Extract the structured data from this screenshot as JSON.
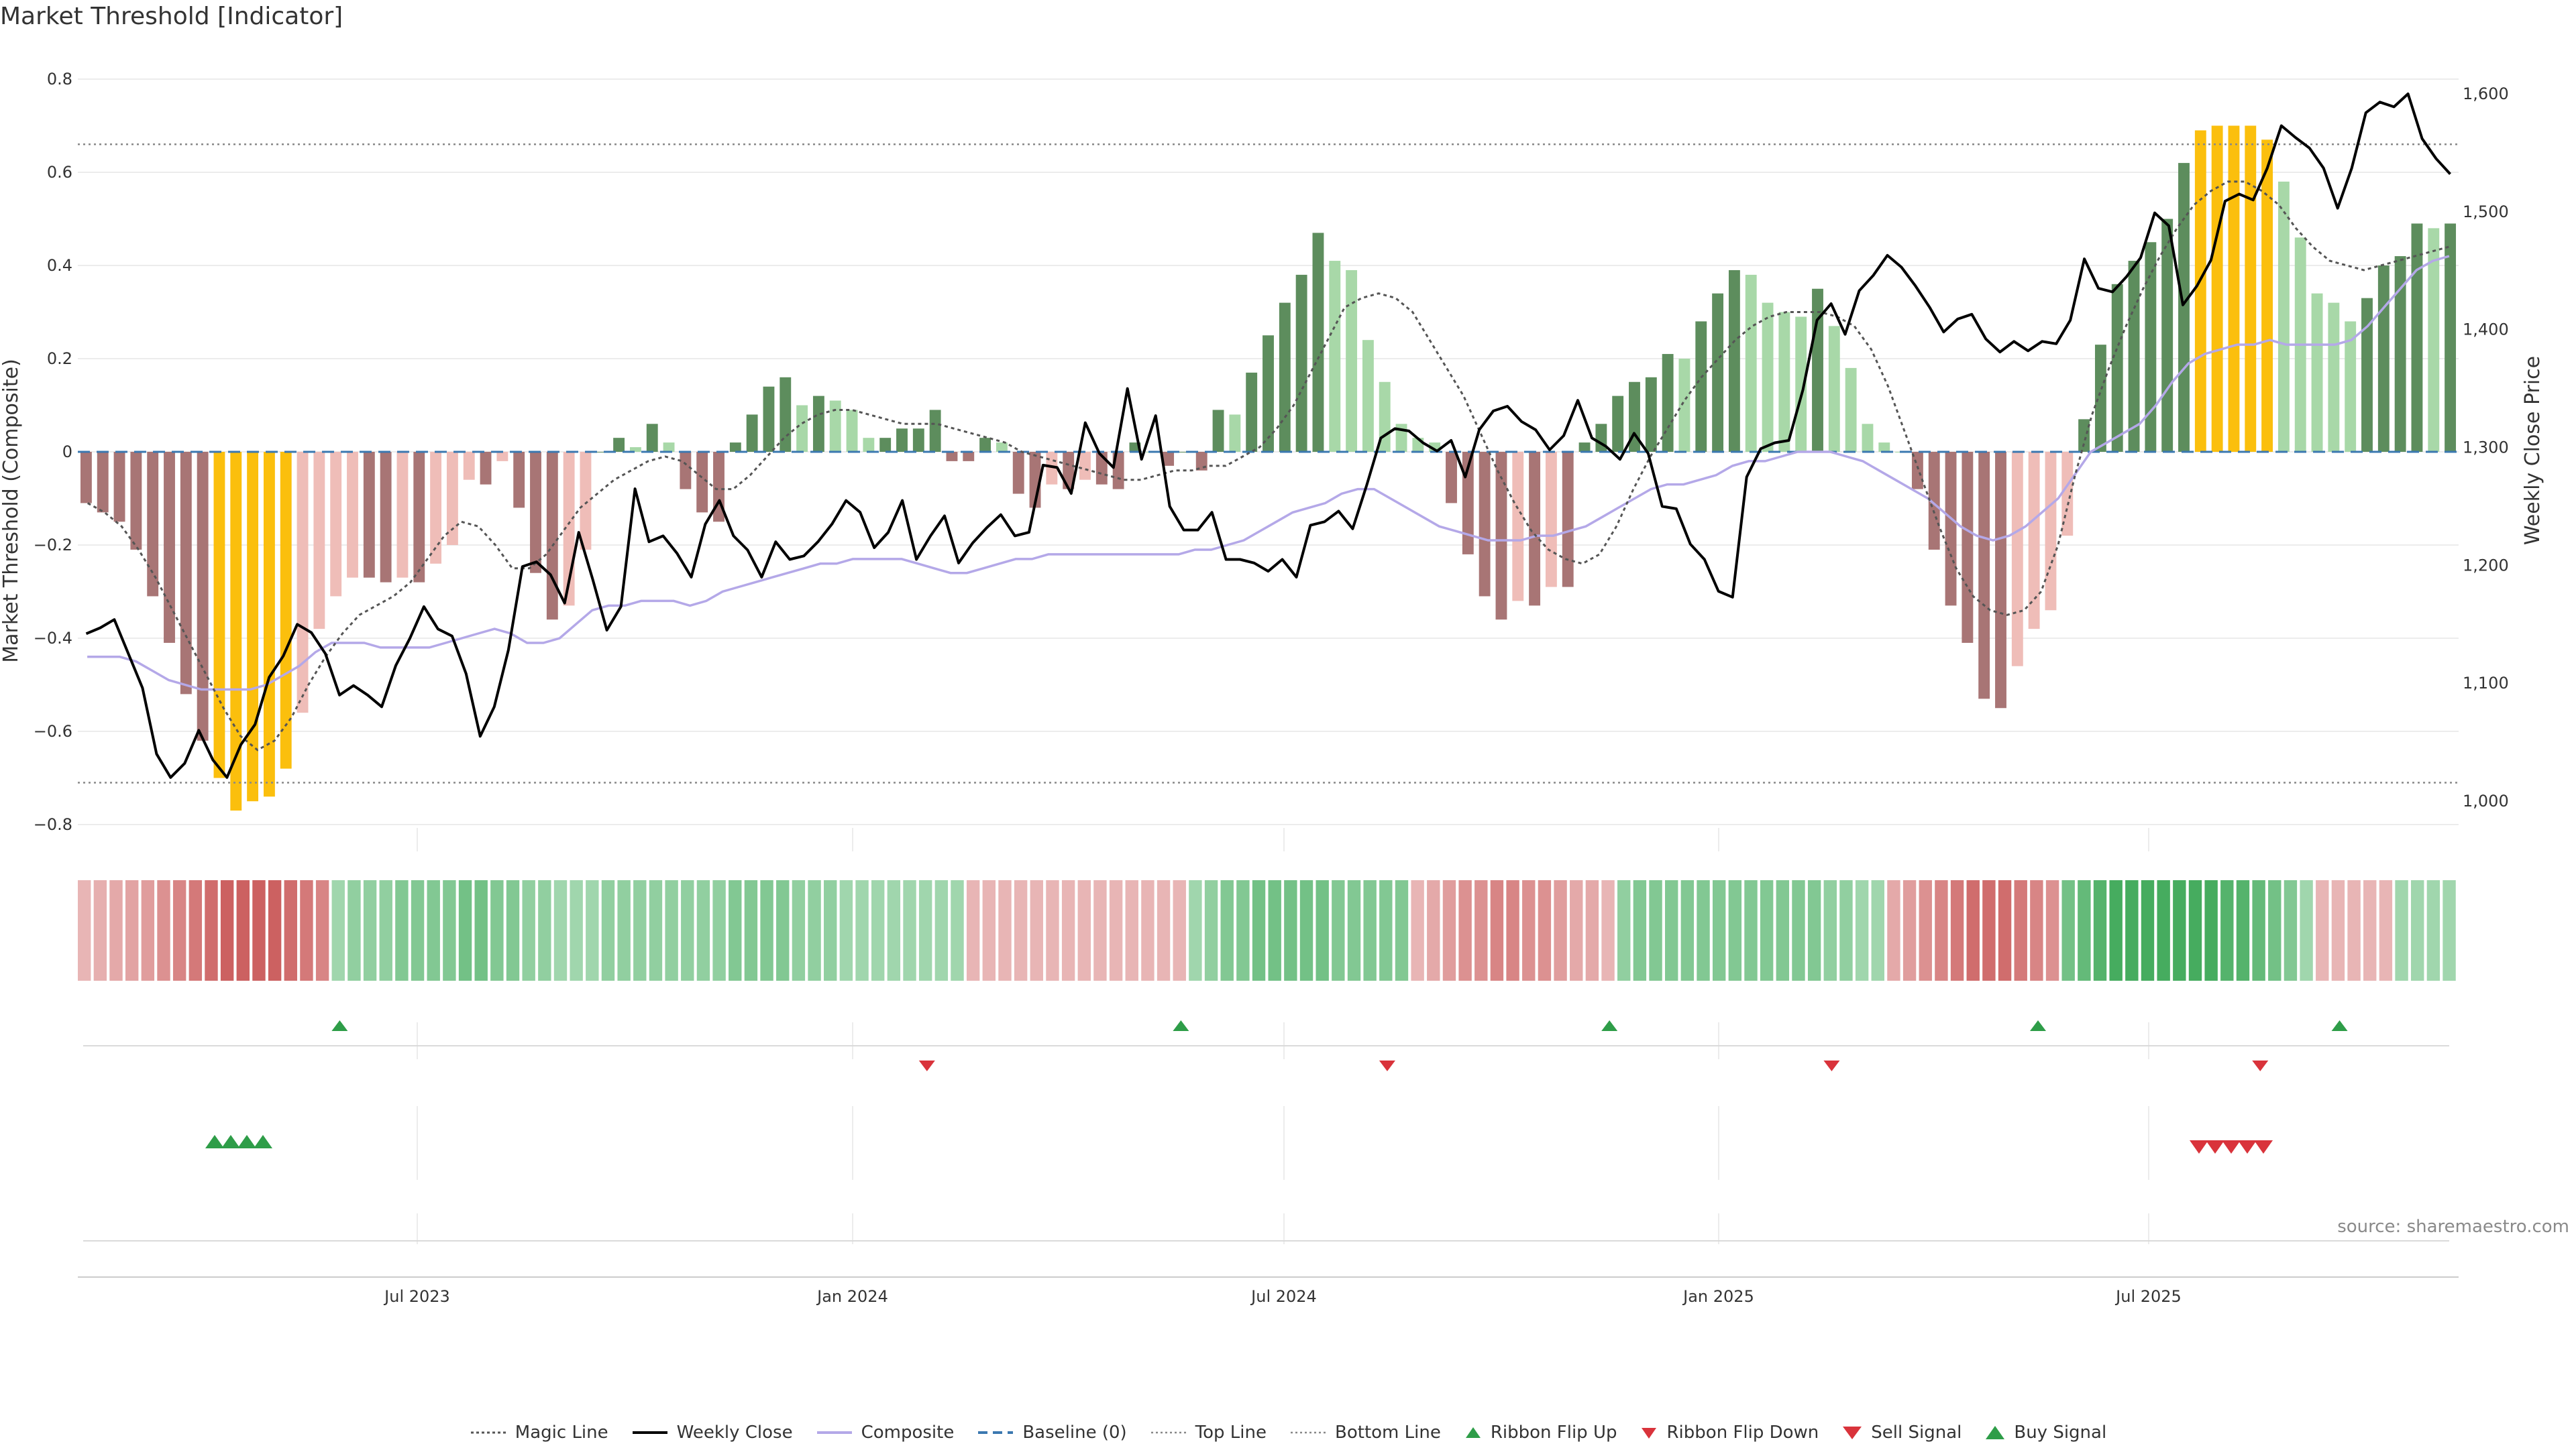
{
  "title": "Market Threshold [Indicator]",
  "source": "source: sharemaestro.com",
  "colors": {
    "bar_strong_pos": "#5d8d5d",
    "bar_weak_pos": "#a8d8a8",
    "bar_strong_neg": "#a87575",
    "bar_weak_neg": "#efbdb8",
    "bar_extreme": "#fbbf0d",
    "composite": "#b4a8e8",
    "weekly_close": "#000000",
    "magic_line": "#555555",
    "buy": "#2e9d48",
    "sell": "#d9333b"
  },
  "chart_data": {
    "type": "bar",
    "x_ticks": [
      "Jul 2023",
      "Jan 2024",
      "Jul 2024",
      "Jan 2025",
      "Jul 2025"
    ],
    "left_axis": {
      "label": "Market Threshold (Composite)",
      "ticks": [
        0.8,
        0.6,
        0.4,
        0.2,
        0,
        -0.2,
        -0.4,
        -0.6,
        -0.8
      ]
    },
    "right_axis": {
      "label": "Weekly Close Price",
      "ticks": [
        "1,600",
        "1,500",
        "1,400",
        "1,300",
        "1,200",
        "1,100",
        "1,000"
      ]
    },
    "top_line": 0.66,
    "bottom_line": -0.71,
    "baseline": 0,
    "composite_bars": [
      -0.11,
      -0.13,
      -0.15,
      -0.21,
      -0.31,
      -0.41,
      -0.52,
      -0.62,
      -0.7,
      -0.77,
      -0.75,
      -0.74,
      -0.68,
      -0.56,
      -0.38,
      -0.31,
      -0.27,
      -0.27,
      -0.28,
      -0.27,
      -0.28,
      -0.24,
      -0.2,
      -0.06,
      -0.07,
      -0.02,
      -0.12,
      -0.26,
      -0.36,
      -0.33,
      -0.21,
      0.0,
      0.03,
      0.01,
      0.06,
      0.02,
      -0.08,
      -0.13,
      -0.15,
      0.02,
      0.08,
      0.14,
      0.16,
      0.1,
      0.12,
      0.11,
      0.09,
      0.03,
      0.03,
      0.05,
      0.05,
      0.09,
      -0.02,
      -0.02,
      0.03,
      0.02,
      -0.09,
      -0.12,
      -0.07,
      -0.08,
      -0.06,
      -0.07,
      -0.08,
      0.02,
      0.0,
      -0.03,
      0.0,
      -0.04,
      0.09,
      0.08,
      0.17,
      0.25,
      0.32,
      0.38,
      0.47,
      0.41,
      0.39,
      0.24,
      0.15,
      0.06,
      0.03,
      0.02,
      -0.11,
      -0.22,
      -0.31,
      -0.36,
      -0.32,
      -0.33,
      -0.29,
      -0.29,
      0.02,
      0.06,
      0.12,
      0.15,
      0.16,
      0.21,
      0.2,
      0.28,
      0.34,
      0.39,
      0.38,
      0.32,
      0.3,
      0.29,
      0.35,
      0.27,
      0.18,
      0.06,
      0.02,
      0.0,
      -0.08,
      -0.21,
      -0.33,
      -0.41,
      -0.53,
      -0.55,
      -0.46,
      -0.38,
      -0.34,
      -0.18,
      0.07,
      0.23,
      0.36,
      0.41,
      0.45,
      0.5,
      0.62,
      0.69,
      0.7,
      0.7,
      0.7,
      0.67,
      0.58,
      0.46,
      0.34,
      0.32,
      0.28,
      0.33,
      0.4,
      0.42,
      0.49,
      0.48,
      0.49
    ],
    "weekly_close": [
      1142,
      1147,
      1154,
      1125,
      1096,
      1040,
      1020,
      1032,
      1060,
      1035,
      1020,
      1048,
      1065,
      1105,
      1123,
      1150,
      1143,
      1125,
      1090,
      1098,
      1090,
      1080,
      1115,
      1138,
      1165,
      1146,
      1140,
      1108,
      1055,
      1080,
      1128,
      1199,
      1203,
      1192,
      1168,
      1228,
      1188,
      1145,
      1165,
      1265,
      1220,
      1225,
      1210,
      1190,
      1235,
      1255,
      1225,
      1213,
      1190,
      1220,
      1205,
      1208,
      1220,
      1235,
      1255,
      1245,
      1215,
      1228,
      1255,
      1205,
      1225,
      1242,
      1202,
      1219,
      1232,
      1243,
      1225,
      1228,
      1285,
      1283,
      1261,
      1321,
      1295,
      1283,
      1350,
      1290,
      1327,
      1250,
      1230,
      1230,
      1245,
      1205,
      1205,
      1202,
      1195,
      1205,
      1190,
      1234,
      1237,
      1246,
      1231,
      1268,
      1308,
      1316,
      1314,
      1304,
      1297,
      1306,
      1275,
      1315,
      1331,
      1335,
      1322,
      1315,
      1298,
      1310,
      1340,
      1308,
      1301,
      1290,
      1312,
      1295,
      1250,
      1248,
      1218,
      1205,
      1178,
      1173,
      1275,
      1299,
      1304,
      1306,
      1349,
      1408,
      1422,
      1396,
      1433,
      1446,
      1463,
      1453,
      1437,
      1419,
      1398,
      1409,
      1413,
      1392,
      1381,
      1390,
      1382,
      1390,
      1388,
      1408,
      1460,
      1435,
      1432,
      1445,
      1461,
      1499,
      1488,
      1421,
      1437,
      1459,
      1509,
      1515,
      1510,
      1537,
      1573,
      1563,
      1554,
      1537,
      1503,
      1537,
      1584,
      1593,
      1589,
      1600,
      1562,
      1545,
      1532
    ],
    "composite_line": [
      -0.44,
      -0.44,
      -0.44,
      -0.45,
      -0.47,
      -0.49,
      -0.5,
      -0.51,
      -0.51,
      -0.51,
      -0.51,
      -0.5,
      -0.48,
      -0.46,
      -0.43,
      -0.41,
      -0.41,
      -0.41,
      -0.42,
      -0.42,
      -0.42,
      -0.42,
      -0.41,
      -0.4,
      -0.39,
      -0.38,
      -0.39,
      -0.41,
      -0.41,
      -0.4,
      -0.37,
      -0.34,
      -0.33,
      -0.33,
      -0.32,
      -0.32,
      -0.32,
      -0.33,
      -0.32,
      -0.3,
      -0.29,
      -0.28,
      -0.27,
      -0.26,
      -0.25,
      -0.24,
      -0.24,
      -0.23,
      -0.23,
      -0.23,
      -0.23,
      -0.24,
      -0.25,
      -0.26,
      -0.26,
      -0.25,
      -0.24,
      -0.23,
      -0.23,
      -0.22,
      -0.22,
      -0.22,
      -0.22,
      -0.22,
      -0.22,
      -0.22,
      -0.22,
      -0.22,
      -0.21,
      -0.21,
      -0.2,
      -0.19,
      -0.17,
      -0.15,
      -0.13,
      -0.12,
      -0.11,
      -0.09,
      -0.08,
      -0.08,
      -0.1,
      -0.12,
      -0.14,
      -0.16,
      -0.17,
      -0.18,
      -0.19,
      -0.19,
      -0.19,
      -0.18,
      -0.18,
      -0.17,
      -0.16,
      -0.14,
      -0.12,
      -0.1,
      -0.08,
      -0.07,
      -0.07,
      -0.06,
      -0.05,
      -0.03,
      -0.02,
      -0.02,
      -0.01,
      0.0,
      0.0,
      0.0,
      -0.01,
      -0.02,
      -0.04,
      -0.06,
      -0.08,
      -0.1,
      -0.13,
      -0.16,
      -0.18,
      -0.19,
      -0.18,
      -0.16,
      -0.13,
      -0.1,
      -0.05,
      0.0,
      0.02,
      0.04,
      0.06,
      0.1,
      0.15,
      0.19,
      0.21,
      0.22,
      0.23,
      0.23,
      0.24,
      0.23,
      0.23,
      0.23,
      0.23,
      0.24,
      0.27,
      0.31,
      0.35,
      0.39,
      0.41,
      0.42
    ],
    "magic_line": [
      -0.11,
      -0.13,
      -0.16,
      -0.21,
      -0.27,
      -0.34,
      -0.41,
      -0.48,
      -0.55,
      -0.61,
      -0.64,
      -0.62,
      -0.57,
      -0.5,
      -0.44,
      -0.39,
      -0.35,
      -0.33,
      -0.31,
      -0.28,
      -0.23,
      -0.18,
      -0.15,
      -0.16,
      -0.2,
      -0.25,
      -0.25,
      -0.22,
      -0.17,
      -0.12,
      -0.09,
      -0.06,
      -0.04,
      -0.02,
      -0.01,
      -0.02,
      -0.05,
      -0.08,
      -0.08,
      -0.05,
      -0.01,
      0.03,
      0.06,
      0.08,
      0.09,
      0.09,
      0.08,
      0.07,
      0.06,
      0.06,
      0.06,
      0.05,
      0.04,
      0.03,
      0.02,
      0.0,
      -0.01,
      -0.02,
      -0.03,
      -0.04,
      -0.05,
      -0.06,
      -0.06,
      -0.05,
      -0.04,
      -0.04,
      -0.03,
      -0.03,
      -0.01,
      0.01,
      0.05,
      0.1,
      0.17,
      0.24,
      0.31,
      0.33,
      0.34,
      0.33,
      0.3,
      0.24,
      0.18,
      0.12,
      0.04,
      -0.04,
      -0.11,
      -0.17,
      -0.21,
      -0.23,
      -0.24,
      -0.22,
      -0.16,
      -0.08,
      -0.01,
      0.05,
      0.11,
      0.16,
      0.2,
      0.24,
      0.27,
      0.29,
      0.3,
      0.3,
      0.3,
      0.29,
      0.27,
      0.22,
      0.14,
      0.04,
      -0.06,
      -0.16,
      -0.25,
      -0.31,
      -0.34,
      -0.35,
      -0.34,
      -0.3,
      -0.2,
      -0.05,
      0.08,
      0.18,
      0.27,
      0.35,
      0.42,
      0.48,
      0.53,
      0.56,
      0.58,
      0.58,
      0.56,
      0.53,
      0.48,
      0.44,
      0.41,
      0.4,
      0.39,
      0.4,
      0.41,
      0.42,
      0.43,
      0.44
    ],
    "ribbon": [
      -0.2,
      -0.25,
      -0.3,
      -0.35,
      -0.4,
      -0.5,
      -0.6,
      -0.7,
      -0.8,
      -0.9,
      -0.9,
      -0.9,
      -0.9,
      -0.8,
      -0.7,
      -0.6,
      0.3,
      0.4,
      0.4,
      0.4,
      0.5,
      0.5,
      0.5,
      0.5,
      0.6,
      0.6,
      0.5,
      0.5,
      0.4,
      0.4,
      0.3,
      0.3,
      0.3,
      0.4,
      0.4,
      0.4,
      0.4,
      0.4,
      0.4,
      0.4,
      0.4,
      0.5,
      0.5,
      0.5,
      0.5,
      0.4,
      0.4,
      0.4,
      0.3,
      0.3,
      0.3,
      0.3,
      0.3,
      0.3,
      0.3,
      0.3,
      -0.2,
      -0.2,
      -0.2,
      -0.2,
      -0.2,
      -0.2,
      -0.2,
      -0.2,
      -0.2,
      -0.2,
      -0.2,
      -0.2,
      -0.2,
      -0.2,
      0.3,
      0.4,
      0.5,
      0.5,
      0.6,
      0.6,
      0.6,
      0.6,
      0.6,
      0.5,
      0.5,
      0.5,
      0.5,
      0.5,
      -0.2,
      -0.3,
      -0.4,
      -0.5,
      -0.5,
      -0.6,
      -0.6,
      -0.5,
      -0.5,
      -0.4,
      -0.3,
      -0.3,
      -0.2,
      0.4,
      0.5,
      0.5,
      0.5,
      0.5,
      0.5,
      0.5,
      0.5,
      0.5,
      0.5,
      0.5,
      0.5,
      0.5,
      0.4,
      0.4,
      0.3,
      0.3,
      -0.3,
      -0.4,
      -0.5,
      -0.6,
      -0.7,
      -0.8,
      -0.8,
      -0.8,
      -0.7,
      -0.6,
      -0.5,
      0.6,
      0.7,
      0.8,
      0.9,
      0.9,
      0.9,
      0.9,
      0.9,
      0.9,
      0.9,
      0.8,
      0.8,
      0.7,
      0.6,
      0.5,
      0.3,
      -0.2,
      -0.2,
      -0.2,
      -0.2,
      -0.2,
      0.3,
      0.3,
      0.3,
      0.3
    ],
    "ribbon_flip_up": [
      16,
      69,
      96,
      123,
      142
    ],
    "ribbon_flip_down": [
      53,
      82,
      110,
      137
    ],
    "buy_signals": [
      8,
      9,
      10,
      11
    ],
    "sell_signals": [
      128,
      129,
      130,
      131,
      132
    ],
    "legend": [
      "Magic Line",
      "Weekly Close",
      "Composite",
      "Baseline (0)",
      "Top Line",
      "Bottom Line",
      "Ribbon Flip Up",
      "Ribbon Flip Down",
      "Sell Signal",
      "Buy Signal"
    ]
  }
}
